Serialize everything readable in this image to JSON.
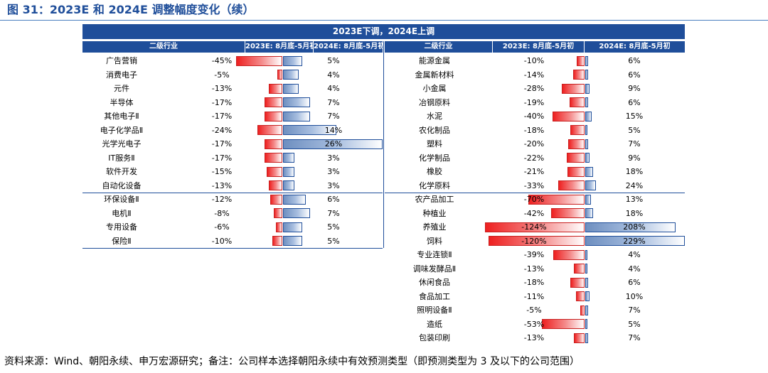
{
  "title": "图 31：2023E 和 2024E 调整幅度变化（续）",
  "banner": "2023E下调，2024E上调",
  "headers": {
    "left": [
      "二级行业",
      "2023E: 8月底-5月初",
      "2024E: 8月底-5月初"
    ],
    "right": [
      "二级行业",
      "2023E: 8月底-5月初",
      "2024E: 8月底-5月初"
    ]
  },
  "left_rows": [
    {
      "industry": "广告营销",
      "e2023": "-45%",
      "e2024": "5%"
    },
    {
      "industry": "消费电子",
      "e2023": "-5%",
      "e2024": "4%"
    },
    {
      "industry": "元件",
      "e2023": "-13%",
      "e2024": "4%"
    },
    {
      "industry": "半导体",
      "e2023": "-17%",
      "e2024": "7%"
    },
    {
      "industry": "其他电子Ⅱ",
      "e2023": "-17%",
      "e2024": "7%"
    },
    {
      "industry": "电子化学品Ⅱ",
      "e2023": "-24%",
      "e2024": "14%"
    },
    {
      "industry": "光学光电子",
      "e2023": "-17%",
      "e2024": "26%"
    },
    {
      "industry": "IT服务Ⅱ",
      "e2023": "-17%",
      "e2024": "3%"
    },
    {
      "industry": "软件开发",
      "e2023": "-15%",
      "e2024": "3%"
    },
    {
      "industry": "自动化设备",
      "e2023": "-13%",
      "e2024": "3%"
    },
    {
      "industry": "环保设备Ⅱ",
      "e2023": "-12%",
      "e2024": "6%"
    },
    {
      "industry": "电机Ⅱ",
      "e2023": "-8%",
      "e2024": "7%"
    },
    {
      "industry": "专用设备",
      "e2023": "-6%",
      "e2024": "5%"
    },
    {
      "industry": "保险Ⅱ",
      "e2023": "-10%",
      "e2024": "5%"
    }
  ],
  "right_rows": [
    {
      "industry": "能源金属",
      "e2023": "-10%",
      "e2024": "6%"
    },
    {
      "industry": "金属新材料",
      "e2023": "-14%",
      "e2024": "6%"
    },
    {
      "industry": "小金属",
      "e2023": "-28%",
      "e2024": "9%"
    },
    {
      "industry": "冶钢原料",
      "e2023": "-19%",
      "e2024": "6%"
    },
    {
      "industry": "水泥",
      "e2023": "-40%",
      "e2024": "15%"
    },
    {
      "industry": "农化制品",
      "e2023": "-18%",
      "e2024": "5%"
    },
    {
      "industry": "塑料",
      "e2023": "-20%",
      "e2024": "7%"
    },
    {
      "industry": "化学制品",
      "e2023": "-22%",
      "e2024": "9%"
    },
    {
      "industry": "橡胶",
      "e2023": "-21%",
      "e2024": "18%"
    },
    {
      "industry": "化学原料",
      "e2023": "-33%",
      "e2024": "24%"
    },
    {
      "industry": "农产品加工",
      "e2023": "-70%",
      "e2024": "13%"
    },
    {
      "industry": "种植业",
      "e2023": "-42%",
      "e2024": "18%"
    },
    {
      "industry": "养殖业",
      "e2023": "-124%",
      "e2024": "208%"
    },
    {
      "industry": "饲料",
      "e2023": "-120%",
      "e2024": "229%"
    },
    {
      "industry": "专业连锁Ⅱ",
      "e2023": "-39%",
      "e2024": "4%"
    },
    {
      "industry": "调味发酵品Ⅱ",
      "e2023": "-13%",
      "e2024": "4%"
    },
    {
      "industry": "休闲食品",
      "e2023": "-18%",
      "e2024": "6%"
    },
    {
      "industry": "食品加工",
      "e2023": "-11%",
      "e2024": "10%"
    },
    {
      "industry": "照明设备Ⅱ",
      "e2023": "-5%",
      "e2024": "7%"
    },
    {
      "industry": "造纸",
      "e2023": "-53%",
      "e2024": "5%"
    },
    {
      "industry": "包装印刷",
      "e2023": "-13%",
      "e2024": "7%"
    }
  ],
  "footer": "资料来源：Wind、朝阳永续、申万宏源研究；备注：公司样本选择朝阳永续中有效预测类型（即预测类型为 3 及以下的公司范围）"
}
